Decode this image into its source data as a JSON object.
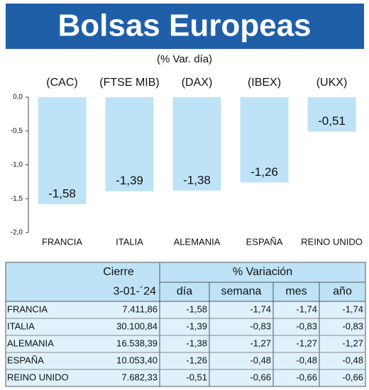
{
  "chart_data": {
    "type": "bar",
    "title": "Bolsas Europeas",
    "subtitle": "(% Var. día)",
    "indices": [
      "(CAC)",
      "(FTSE MIB)",
      "(DAX)",
      "(IBEX)",
      "(UKX)"
    ],
    "categories": [
      "FRANCIA",
      "ITALIA",
      "ALEMANIA",
      "ESPAÑA",
      "REINO UNIDO"
    ],
    "values": [
      -1.58,
      -1.39,
      -1.38,
      -1.26,
      -0.51
    ],
    "value_labels": [
      "-1,58",
      "-1,39",
      "-1,38",
      "-1,26",
      "-0,51"
    ],
    "color": "#bfe3f6",
    "ylim": [
      -2,
      0
    ],
    "yticks": [
      {
        "value": 0,
        "label": "0,0"
      },
      {
        "value": -0.5,
        "label": "-0,5"
      },
      {
        "value": -1,
        "label": "-1,0"
      },
      {
        "value": -1.5,
        "label": "-1,5"
      },
      {
        "value": -2,
        "label": "-2,0"
      }
    ]
  },
  "table": {
    "header": [
      [
        "Cierre",
        "% Variación"
      ],
      [
        "3-01-´24",
        "día",
        "semana",
        "mes",
        "año"
      ]
    ],
    "rows": [
      [
        "FRANCIA",
        "7.411,86",
        "-1,58",
        "-1,74",
        "-1,74",
        "-1,74"
      ],
      [
        "ITALIA",
        "30.100,84",
        "-1,39",
        "-0,83",
        "-0,83",
        "-0,83"
      ],
      [
        "ALEMANIA",
        "16.538,39",
        "-1,38",
        "-1,27",
        "-1,27",
        "-1,27"
      ],
      [
        "ESPAÑA",
        "10.053,40",
        "-1,26",
        "-0,48",
        "-0,48",
        "-0,48"
      ],
      [
        "REINO UNIDO",
        "7.682,33",
        "-0,51",
        "-0,66",
        "-0,66",
        "-0,66"
      ]
    ]
  }
}
